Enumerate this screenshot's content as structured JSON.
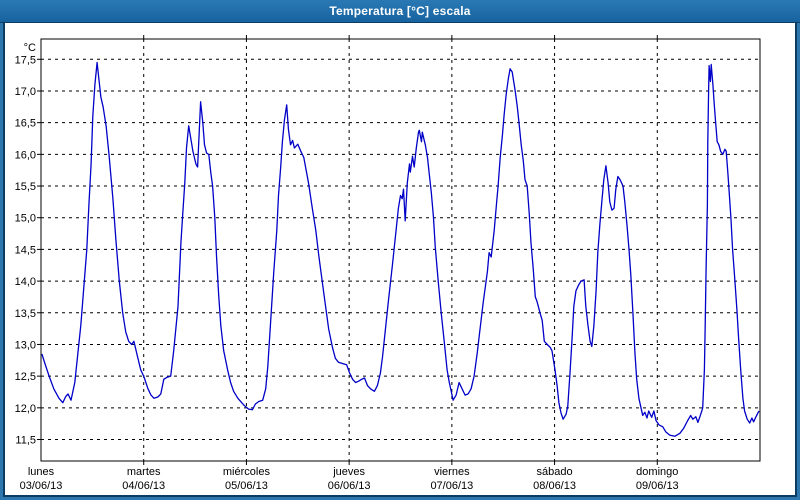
{
  "window": {
    "title": "Temperatura [°C] escala"
  },
  "colors": {
    "titlebar_blue": "#1d6ba5",
    "frame_blue": "#2e76ae",
    "frame_dark_line": "#0a3c64",
    "curve_blue": "#0000c8",
    "grid_black": "#000000",
    "label_black": "#000000",
    "plot_background": "#ffffff"
  },
  "chart_data": {
    "type": "line",
    "title": "Temperatura [°C] escala",
    "xlabel": "",
    "ylabel": "°C",
    "grid": "dashed",
    "legend": "none",
    "y_axis": {
      "unit_label": "°C",
      "min": 11.5,
      "max": 17.5,
      "step": 0.5,
      "tick_values": [
        17.5,
        17.0,
        16.5,
        16.0,
        15.5,
        15.0,
        14.5,
        14.0,
        13.5,
        13.0,
        12.5,
        12.0,
        11.5
      ],
      "tick_labels": [
        "17,5",
        "17,0",
        "16,5",
        "16,0",
        "15,5",
        "15,0",
        "14,5",
        "14,0",
        "13,5",
        "13,0",
        "12,5",
        "12,0",
        "11,5"
      ]
    },
    "x_axis": {
      "total_hours": 168,
      "hours_per_day": 24,
      "days": [
        {
          "name": "lunes",
          "date": "03/06/13"
        },
        {
          "name": "martes",
          "date": "04/06/13"
        },
        {
          "name": "miércoles",
          "date": "05/06/13"
        },
        {
          "name": "jueves",
          "date": "06/06/13"
        },
        {
          "name": "viernes",
          "date": "07/06/13"
        },
        {
          "name": "sábado",
          "date": "08/06/13"
        },
        {
          "name": "domingo",
          "date": "09/06/13"
        }
      ]
    },
    "series": [
      {
        "name": "Temperatura",
        "color": "#0000c8",
        "points": [
          [
            0.2,
            12.85
          ],
          [
            0.9,
            12.7
          ],
          [
            1.9,
            12.5
          ],
          [
            3.0,
            12.3
          ],
          [
            4.2,
            12.15
          ],
          [
            5.1,
            12.08
          ],
          [
            5.8,
            12.18
          ],
          [
            6.3,
            12.22
          ],
          [
            7.0,
            12.12
          ],
          [
            7.9,
            12.4
          ],
          [
            8.6,
            12.85
          ],
          [
            9.3,
            13.3
          ],
          [
            10.0,
            13.9
          ],
          [
            10.7,
            14.5
          ],
          [
            11.2,
            15.2
          ],
          [
            11.7,
            15.85
          ],
          [
            12.1,
            16.6
          ],
          [
            12.6,
            17.1
          ],
          [
            13.1,
            17.45
          ],
          [
            13.5,
            17.2
          ],
          [
            14.0,
            16.9
          ],
          [
            14.5,
            16.75
          ],
          [
            15.2,
            16.45
          ],
          [
            15.9,
            16.0
          ],
          [
            16.8,
            15.3
          ],
          [
            17.5,
            14.65
          ],
          [
            18.3,
            14.0
          ],
          [
            19.1,
            13.5
          ],
          [
            19.8,
            13.2
          ],
          [
            20.5,
            13.05
          ],
          [
            21.2,
            13.0
          ],
          [
            21.7,
            13.05
          ],
          [
            22.4,
            12.85
          ],
          [
            23.3,
            12.6
          ],
          [
            24.0,
            12.5
          ],
          [
            25.0,
            12.3
          ],
          [
            25.7,
            12.2
          ],
          [
            26.4,
            12.15
          ],
          [
            27.3,
            12.17
          ],
          [
            28.0,
            12.22
          ],
          [
            28.7,
            12.45
          ],
          [
            29.4,
            12.48
          ],
          [
            30.3,
            12.5
          ],
          [
            31.0,
            12.9
          ],
          [
            32.0,
            13.6
          ],
          [
            32.7,
            14.6
          ],
          [
            33.1,
            15.05
          ],
          [
            33.6,
            15.55
          ],
          [
            34.0,
            16.1
          ],
          [
            34.5,
            16.45
          ],
          [
            35.5,
            16.05
          ],
          [
            36.2,
            15.85
          ],
          [
            36.6,
            15.8
          ],
          [
            37.1,
            16.55
          ],
          [
            37.3,
            16.83
          ],
          [
            37.8,
            16.5
          ],
          [
            38.2,
            16.15
          ],
          [
            38.7,
            16.02
          ],
          [
            39.2,
            16.0
          ],
          [
            39.7,
            15.7
          ],
          [
            40.1,
            15.5
          ],
          [
            40.6,
            15.0
          ],
          [
            41.0,
            14.4
          ],
          [
            41.5,
            13.8
          ],
          [
            42.0,
            13.3
          ],
          [
            42.7,
            12.9
          ],
          [
            43.6,
            12.6
          ],
          [
            44.3,
            12.4
          ],
          [
            45.0,
            12.26
          ],
          [
            46.0,
            12.15
          ],
          [
            46.9,
            12.08
          ],
          [
            47.6,
            12.03
          ],
          [
            48.5,
            11.98
          ],
          [
            49.4,
            11.97
          ],
          [
            50.1,
            12.06
          ],
          [
            50.9,
            12.1
          ],
          [
            51.8,
            12.12
          ],
          [
            52.5,
            12.3
          ],
          [
            53.0,
            12.65
          ],
          [
            53.7,
            13.4
          ],
          [
            54.4,
            14.15
          ],
          [
            55.1,
            14.8
          ],
          [
            55.5,
            15.35
          ],
          [
            56.0,
            15.8
          ],
          [
            56.4,
            16.2
          ],
          [
            56.9,
            16.55
          ],
          [
            57.4,
            16.78
          ],
          [
            57.8,
            16.4
          ],
          [
            58.3,
            16.15
          ],
          [
            58.8,
            16.22
          ],
          [
            59.2,
            16.1
          ],
          [
            60.0,
            16.16
          ],
          [
            60.7,
            16.05
          ],
          [
            61.4,
            15.95
          ],
          [
            62.5,
            15.55
          ],
          [
            63.4,
            15.15
          ],
          [
            64.2,
            14.8
          ],
          [
            64.9,
            14.4
          ],
          [
            65.8,
            13.95
          ],
          [
            66.5,
            13.6
          ],
          [
            67.2,
            13.25
          ],
          [
            68.1,
            12.95
          ],
          [
            68.8,
            12.78
          ],
          [
            69.5,
            12.72
          ],
          [
            70.4,
            12.7
          ],
          [
            71.4,
            12.68
          ],
          [
            72.1,
            12.55
          ],
          [
            72.8,
            12.45
          ],
          [
            73.5,
            12.4
          ],
          [
            74.2,
            12.42
          ],
          [
            74.9,
            12.45
          ],
          [
            75.6,
            12.47
          ],
          [
            76.3,
            12.35
          ],
          [
            77.0,
            12.3
          ],
          [
            77.9,
            12.26
          ],
          [
            78.6,
            12.35
          ],
          [
            79.3,
            12.55
          ],
          [
            79.8,
            12.8
          ],
          [
            80.5,
            13.25
          ],
          [
            81.2,
            13.7
          ],
          [
            82.1,
            14.25
          ],
          [
            82.8,
            14.7
          ],
          [
            83.5,
            15.15
          ],
          [
            84.0,
            15.35
          ],
          [
            84.4,
            15.3
          ],
          [
            84.7,
            15.45
          ],
          [
            85.1,
            14.95
          ],
          [
            85.6,
            15.55
          ],
          [
            86.1,
            15.85
          ],
          [
            86.3,
            15.72
          ],
          [
            86.8,
            15.97
          ],
          [
            87.2,
            15.8
          ],
          [
            87.7,
            16.1
          ],
          [
            88.2,
            16.35
          ],
          [
            88.4,
            16.38
          ],
          [
            88.9,
            16.2
          ],
          [
            89.1,
            16.35
          ],
          [
            89.8,
            16.15
          ],
          [
            90.3,
            15.95
          ],
          [
            90.7,
            15.7
          ],
          [
            91.2,
            15.4
          ],
          [
            91.7,
            15.0
          ],
          [
            92.1,
            14.55
          ],
          [
            92.8,
            14.0
          ],
          [
            93.5,
            13.5
          ],
          [
            94.2,
            13.05
          ],
          [
            94.9,
            12.6
          ],
          [
            95.4,
            12.4
          ],
          [
            95.9,
            12.25
          ],
          [
            96.3,
            12.12
          ],
          [
            97.0,
            12.2
          ],
          [
            97.7,
            12.4
          ],
          [
            98.4,
            12.3
          ],
          [
            99.1,
            12.2
          ],
          [
            99.8,
            12.22
          ],
          [
            100.5,
            12.3
          ],
          [
            101.2,
            12.5
          ],
          [
            101.9,
            12.85
          ],
          [
            102.6,
            13.25
          ],
          [
            103.3,
            13.65
          ],
          [
            104.3,
            14.15
          ],
          [
            104.7,
            14.45
          ],
          [
            105.2,
            14.38
          ],
          [
            105.9,
            14.8
          ],
          [
            106.4,
            15.2
          ],
          [
            106.8,
            15.5
          ],
          [
            107.3,
            15.95
          ],
          [
            107.8,
            16.3
          ],
          [
            108.2,
            16.62
          ],
          [
            108.7,
            16.95
          ],
          [
            109.2,
            17.2
          ],
          [
            109.6,
            17.35
          ],
          [
            110.1,
            17.3
          ],
          [
            110.8,
            17.0
          ],
          [
            111.3,
            16.75
          ],
          [
            111.7,
            16.5
          ],
          [
            112.2,
            16.15
          ],
          [
            112.7,
            15.9
          ],
          [
            113.1,
            15.6
          ],
          [
            113.6,
            15.5
          ],
          [
            114.1,
            15.05
          ],
          [
            114.5,
            14.6
          ],
          [
            115.0,
            14.2
          ],
          [
            115.5,
            13.75
          ],
          [
            115.9,
            13.68
          ],
          [
            116.6,
            13.5
          ],
          [
            117.1,
            13.38
          ],
          [
            117.6,
            13.05
          ],
          [
            118.3,
            13.0
          ],
          [
            119.0,
            12.95
          ],
          [
            119.4,
            12.9
          ],
          [
            120.1,
            12.6
          ],
          [
            120.6,
            12.35
          ],
          [
            121.0,
            12.08
          ],
          [
            121.5,
            11.92
          ],
          [
            122.0,
            11.82
          ],
          [
            122.7,
            11.9
          ],
          [
            123.1,
            12.03
          ],
          [
            123.6,
            12.55
          ],
          [
            124.1,
            13.1
          ],
          [
            124.5,
            13.6
          ],
          [
            125.0,
            13.85
          ],
          [
            125.7,
            13.95
          ],
          [
            126.2,
            14.0
          ],
          [
            126.9,
            14.02
          ],
          [
            127.3,
            13.6
          ],
          [
            127.8,
            13.3
          ],
          [
            128.3,
            13.05
          ],
          [
            128.7,
            12.97
          ],
          [
            129.2,
            13.3
          ],
          [
            129.7,
            13.85
          ],
          [
            130.1,
            14.45
          ],
          [
            130.6,
            14.9
          ],
          [
            131.1,
            15.3
          ],
          [
            131.5,
            15.6
          ],
          [
            132.0,
            15.82
          ],
          [
            132.5,
            15.55
          ],
          [
            132.9,
            15.25
          ],
          [
            133.4,
            15.12
          ],
          [
            133.9,
            15.15
          ],
          [
            134.3,
            15.45
          ],
          [
            134.8,
            15.65
          ],
          [
            135.3,
            15.6
          ],
          [
            136.0,
            15.5
          ],
          [
            136.4,
            15.25
          ],
          [
            136.9,
            14.9
          ],
          [
            137.4,
            14.5
          ],
          [
            137.8,
            14.1
          ],
          [
            138.3,
            13.5
          ],
          [
            138.8,
            12.85
          ],
          [
            139.2,
            12.45
          ],
          [
            139.7,
            12.15
          ],
          [
            140.2,
            12.0
          ],
          [
            140.6,
            11.88
          ],
          [
            141.1,
            11.93
          ],
          [
            141.6,
            11.84
          ],
          [
            142.0,
            11.95
          ],
          [
            142.7,
            11.85
          ],
          [
            143.2,
            11.95
          ],
          [
            143.7,
            11.8
          ],
          [
            144.4,
            11.73
          ],
          [
            145.3,
            11.7
          ],
          [
            146.0,
            11.62
          ],
          [
            146.9,
            11.57
          ],
          [
            148.1,
            11.55
          ],
          [
            149.3,
            11.6
          ],
          [
            150.2,
            11.68
          ],
          [
            151.1,
            11.8
          ],
          [
            151.8,
            11.88
          ],
          [
            152.3,
            11.82
          ],
          [
            153.0,
            11.86
          ],
          [
            153.5,
            11.77
          ],
          [
            153.9,
            11.85
          ],
          [
            154.4,
            11.95
          ],
          [
            154.6,
            12.0
          ],
          [
            155.0,
            12.6
          ],
          [
            155.2,
            13.3
          ],
          [
            155.4,
            14.2
          ],
          [
            155.7,
            15.2
          ],
          [
            155.8,
            16.2
          ],
          [
            156.0,
            17.0
          ],
          [
            156.1,
            17.4
          ],
          [
            156.4,
            17.15
          ],
          [
            156.6,
            17.42
          ],
          [
            157.0,
            17.1
          ],
          [
            157.3,
            16.8
          ],
          [
            157.7,
            16.45
          ],
          [
            158.0,
            16.2
          ],
          [
            158.4,
            16.15
          ],
          [
            158.8,
            16.05
          ],
          [
            159.3,
            16.0
          ],
          [
            159.8,
            16.08
          ],
          [
            160.1,
            16.05
          ],
          [
            160.5,
            15.7
          ],
          [
            160.8,
            15.4
          ],
          [
            161.2,
            15.0
          ],
          [
            161.6,
            14.5
          ],
          [
            162.1,
            14.05
          ],
          [
            162.6,
            13.55
          ],
          [
            163.0,
            13.1
          ],
          [
            163.5,
            12.6
          ],
          [
            164.0,
            12.15
          ],
          [
            164.4,
            11.95
          ],
          [
            165.0,
            11.82
          ],
          [
            165.6,
            11.76
          ],
          [
            166.1,
            11.84
          ],
          [
            166.5,
            11.78
          ],
          [
            167.0,
            11.85
          ],
          [
            167.5,
            11.92
          ],
          [
            167.8,
            11.95
          ]
        ]
      }
    ]
  }
}
